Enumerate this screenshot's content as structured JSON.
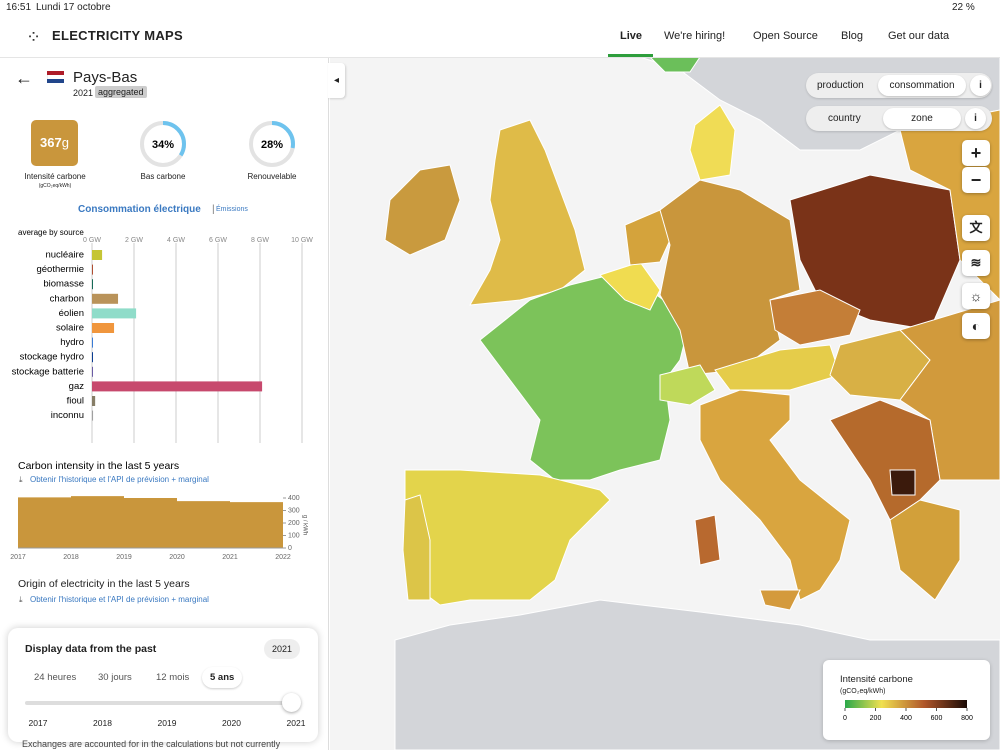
{
  "status": {
    "time": "16:51",
    "date": "Lundi 17 octobre",
    "battery": "22 %"
  },
  "nav": {
    "brand": "ELECTRICITY MAPS",
    "links": [
      "Live",
      "We're hiring!",
      "Open Source",
      "Blog",
      "Get our data"
    ]
  },
  "zone": {
    "name": "Pays-Bas",
    "year": "2021",
    "tag": "aggregated"
  },
  "metrics": {
    "carbon": {
      "value": "367",
      "unit": "g",
      "label": "Intensité carbone",
      "sublabel": "(gCO₂eq/kWh)"
    },
    "low_carbon": {
      "value": 34,
      "label": "34%",
      "name": "Bas carbone"
    },
    "renewable": {
      "value": 28,
      "label": "28%",
      "name": "Renouvelable"
    }
  },
  "chart_data": [
    {
      "type": "hbar",
      "title": "Consommation électrique",
      "alt_title": "Émissions",
      "subtitle": "average by source",
      "categories": [
        "nucléaire",
        "géothermie",
        "biomasse",
        "charbon",
        "éolien",
        "solaire",
        "hydro",
        "stockage hydro",
        "stockage batterie",
        "gaz",
        "fioul",
        "inconnu"
      ],
      "values": [
        0.48,
        0,
        0,
        1.24,
        2.1,
        1.05,
        0,
        0,
        0,
        8.1,
        0.15,
        0.05
      ],
      "colors": [
        "#c5c535",
        "#b04e32",
        "#166a57",
        "#b9935a",
        "#8fdcc9",
        "#f0963d",
        "#3a7bd5",
        "#0b3d91",
        "#6b5ca5",
        "#c7496d",
        "#867d66",
        "#a0a0a0"
      ],
      "xlim": [
        0,
        10
      ],
      "xticks": [
        {
          "value": 0,
          "label": "0 GW"
        },
        {
          "value": 2,
          "label": "2 GW"
        },
        {
          "value": 4,
          "label": "4 GW"
        },
        {
          "value": 6,
          "label": "6 GW"
        },
        {
          "value": 8,
          "label": "8 GW"
        },
        {
          "value": 10,
          "label": "10 GW"
        }
      ],
      "grid": true
    },
    {
      "type": "histogram",
      "title": "Carbon intensity in the last 5 years",
      "link": "Obtenir l'historique et l'API de prévision + marginal",
      "bins": [
        2017,
        2018,
        2019,
        2020,
        2021,
        2022
      ],
      "values": [
        405,
        415,
        400,
        375,
        367
      ],
      "color": "#c9963c",
      "ylim": [
        0,
        400
      ],
      "yticks": [
        0,
        100,
        200,
        300,
        400
      ],
      "ylabel": "g / kWh"
    }
  ],
  "origin": {
    "title": "Origin of electricity in the last 5 years",
    "link": "Obtenir l'historique et l'API de prévision + marginal"
  },
  "past": {
    "title": "Display data from the past",
    "selected": "2021",
    "options": [
      "24 heures",
      "30 jours",
      "12 mois",
      "5 ans"
    ],
    "years": [
      "2017",
      "2018",
      "2019",
      "2020",
      "2021"
    ],
    "footer": "Exchanges are accounted for in the calculations but not currently"
  },
  "toggles": {
    "mode": [
      "production",
      "consommation"
    ],
    "scope": [
      "country",
      "zone"
    ],
    "info": "i"
  },
  "zoom": [
    "+",
    "−"
  ],
  "legend": {
    "title": "Intensité carbone",
    "unit": "(gCO₂eq/kWh)",
    "ticks": [
      0,
      200,
      400,
      600,
      800
    ],
    "lim": [
      0,
      800
    ]
  }
}
